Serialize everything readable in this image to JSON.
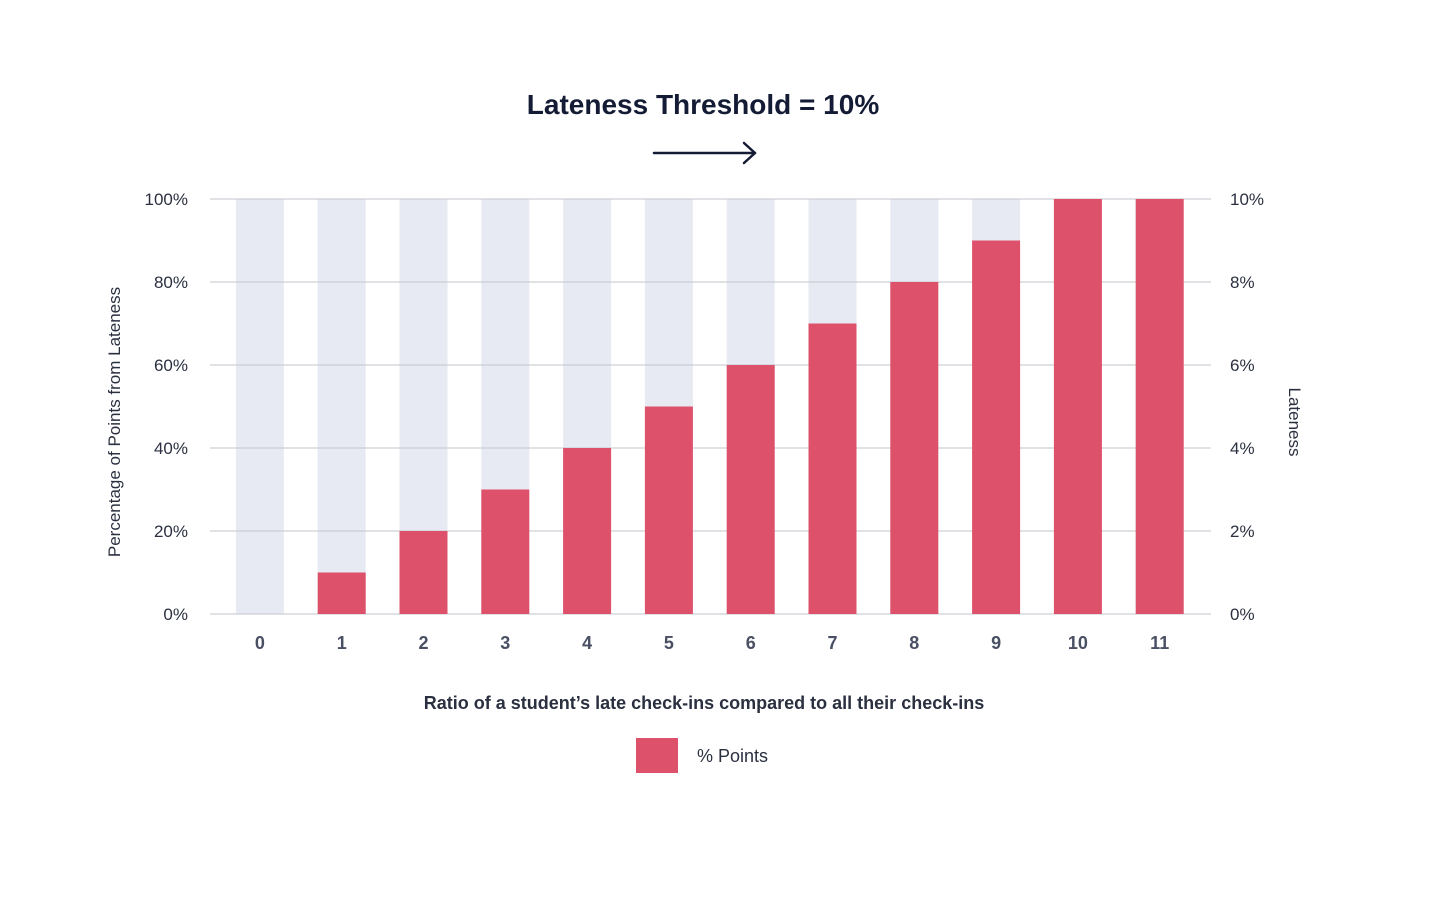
{
  "chart_data": {
    "type": "bar",
    "title": "Lateness Threshold = 10%",
    "xlabel": "Ratio of a student’s late check-ins compared to all their check-ins",
    "ylabel": "Percentage of Points from Lateness",
    "y2label": "Lateness",
    "categories": [
      "0",
      "1",
      "2",
      "3",
      "4",
      "5",
      "6",
      "7",
      "8",
      "9",
      "10",
      "11"
    ],
    "series": [
      {
        "name": "% Points",
        "values": [
          0,
          10,
          20,
          30,
          40,
          50,
          60,
          70,
          80,
          90,
          100,
          100
        ],
        "color": "#de516a"
      }
    ],
    "background_bar_value": 100,
    "background_bar_color": "#e7eaf2",
    "ylim": [
      0,
      100
    ],
    "y_ticks": [
      "0%",
      "20%",
      "40%",
      "60%",
      "80%",
      "100%"
    ],
    "y2lim": [
      0,
      10
    ],
    "y2_ticks": [
      "0%",
      "2%",
      "4%",
      "6%",
      "8%",
      "10%"
    ],
    "grid": true,
    "legend_placement": "bottom-center",
    "arrow_direction": "right",
    "colors": {
      "title": "#141b34",
      "axis_text": "#2b3040",
      "tick_x": "#4a5064",
      "grid": "#c3c6ce"
    }
  }
}
